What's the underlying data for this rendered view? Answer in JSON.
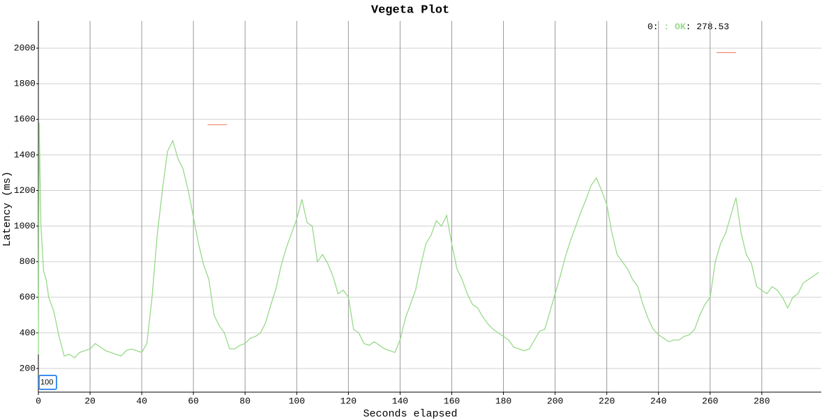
{
  "chart_data": {
    "type": "line",
    "title": "Vegeta Plot",
    "x_label": "Seconds elapsed",
    "y_label": "Latency (ms)",
    "legend": {
      "x": "0:",
      "series": ": OK",
      "value": ": 278.53"
    },
    "roll_period": 100,
    "xlim": [
      0,
      303
    ],
    "ylim": [
      67,
      2153
    ],
    "xticks": [
      0,
      20,
      40,
      60,
      80,
      100,
      120,
      140,
      160,
      180,
      200,
      220,
      240,
      260,
      280
    ],
    "yticks": [
      200,
      400,
      600,
      800,
      1000,
      1200,
      1400,
      1600,
      1800,
      2000
    ],
    "grid": true,
    "series": [
      {
        "name": "OK",
        "color": "#98d98a",
        "x": [
          0,
          0.3,
          1,
          2,
          3,
          4,
          6,
          8,
          10,
          12,
          14,
          16,
          18,
          20,
          22,
          24,
          26,
          28,
          30,
          32,
          34,
          36,
          38,
          40,
          42,
          44,
          46,
          48,
          50,
          52,
          54,
          56,
          58,
          60,
          62,
          64,
          66,
          68,
          70,
          72,
          74,
          76,
          78,
          80,
          82,
          84,
          86,
          88,
          90,
          92,
          94,
          96,
          98,
          100,
          102,
          104,
          106,
          108,
          110,
          112,
          114,
          116,
          118,
          120,
          122,
          124,
          126,
          128,
          130,
          132,
          134,
          136,
          138,
          140,
          142,
          144,
          146,
          148,
          150,
          152,
          154,
          156,
          158,
          160,
          162,
          164,
          166,
          168,
          170,
          172,
          174,
          176,
          178,
          180,
          182,
          184,
          186,
          188,
          190,
          192,
          194,
          196,
          198,
          200,
          202,
          204,
          206,
          208,
          210,
          212,
          214,
          216,
          218,
          220,
          222,
          224,
          226,
          228,
          230,
          232,
          234,
          236,
          238,
          240,
          242,
          244,
          246,
          248,
          250,
          252,
          254,
          256,
          258,
          260,
          262,
          264,
          266,
          268,
          270,
          272,
          274,
          276,
          278,
          280,
          282,
          284,
          286,
          288,
          290,
          292,
          294,
          296,
          298,
          300,
          302
        ],
        "values": [
          278.53,
          1580,
          1000,
          750,
          700,
          600,
          520,
          380,
          270,
          280,
          260,
          290,
          300,
          310,
          340,
          320,
          300,
          290,
          280,
          270,
          300,
          310,
          300,
          290,
          340,
          600,
          950,
          1200,
          1420,
          1480,
          1380,
          1320,
          1200,
          1050,
          900,
          780,
          700,
          500,
          440,
          400,
          310,
          310,
          330,
          340,
          370,
          380,
          400,
          460,
          560,
          650,
          780,
          880,
          960,
          1040,
          1150,
          1020,
          1000,
          800,
          840,
          790,
          720,
          620,
          640,
          600,
          420,
          400,
          340,
          330,
          350,
          330,
          310,
          300,
          290,
          360,
          480,
          560,
          640,
          780,
          900,
          950,
          1030,
          1000,
          1060,
          900,
          760,
          700,
          620,
          560,
          540,
          490,
          450,
          420,
          400,
          380,
          360,
          320,
          310,
          300,
          310,
          360,
          410,
          420,
          520,
          620,
          720,
          830,
          920,
          1000,
          1080,
          1150,
          1230,
          1270,
          1200,
          1120,
          960,
          840,
          800,
          760,
          700,
          660,
          560,
          480,
          420,
          390,
          370,
          350,
          360,
          360,
          380,
          390,
          420,
          500,
          560,
          600,
          800,
          900,
          960,
          1060,
          1160,
          960,
          840,
          790,
          660,
          640,
          620,
          660,
          640,
          600,
          540,
          600,
          620,
          680,
          700,
          720,
          740
        ]
      },
      {
        "color": "#f08a78",
        "x": [
          65.5,
          73,
          74,
          262.5,
          270
        ],
        "values": [
          1570,
          1570,
          null,
          1975,
          1975
        ]
      }
    ]
  }
}
